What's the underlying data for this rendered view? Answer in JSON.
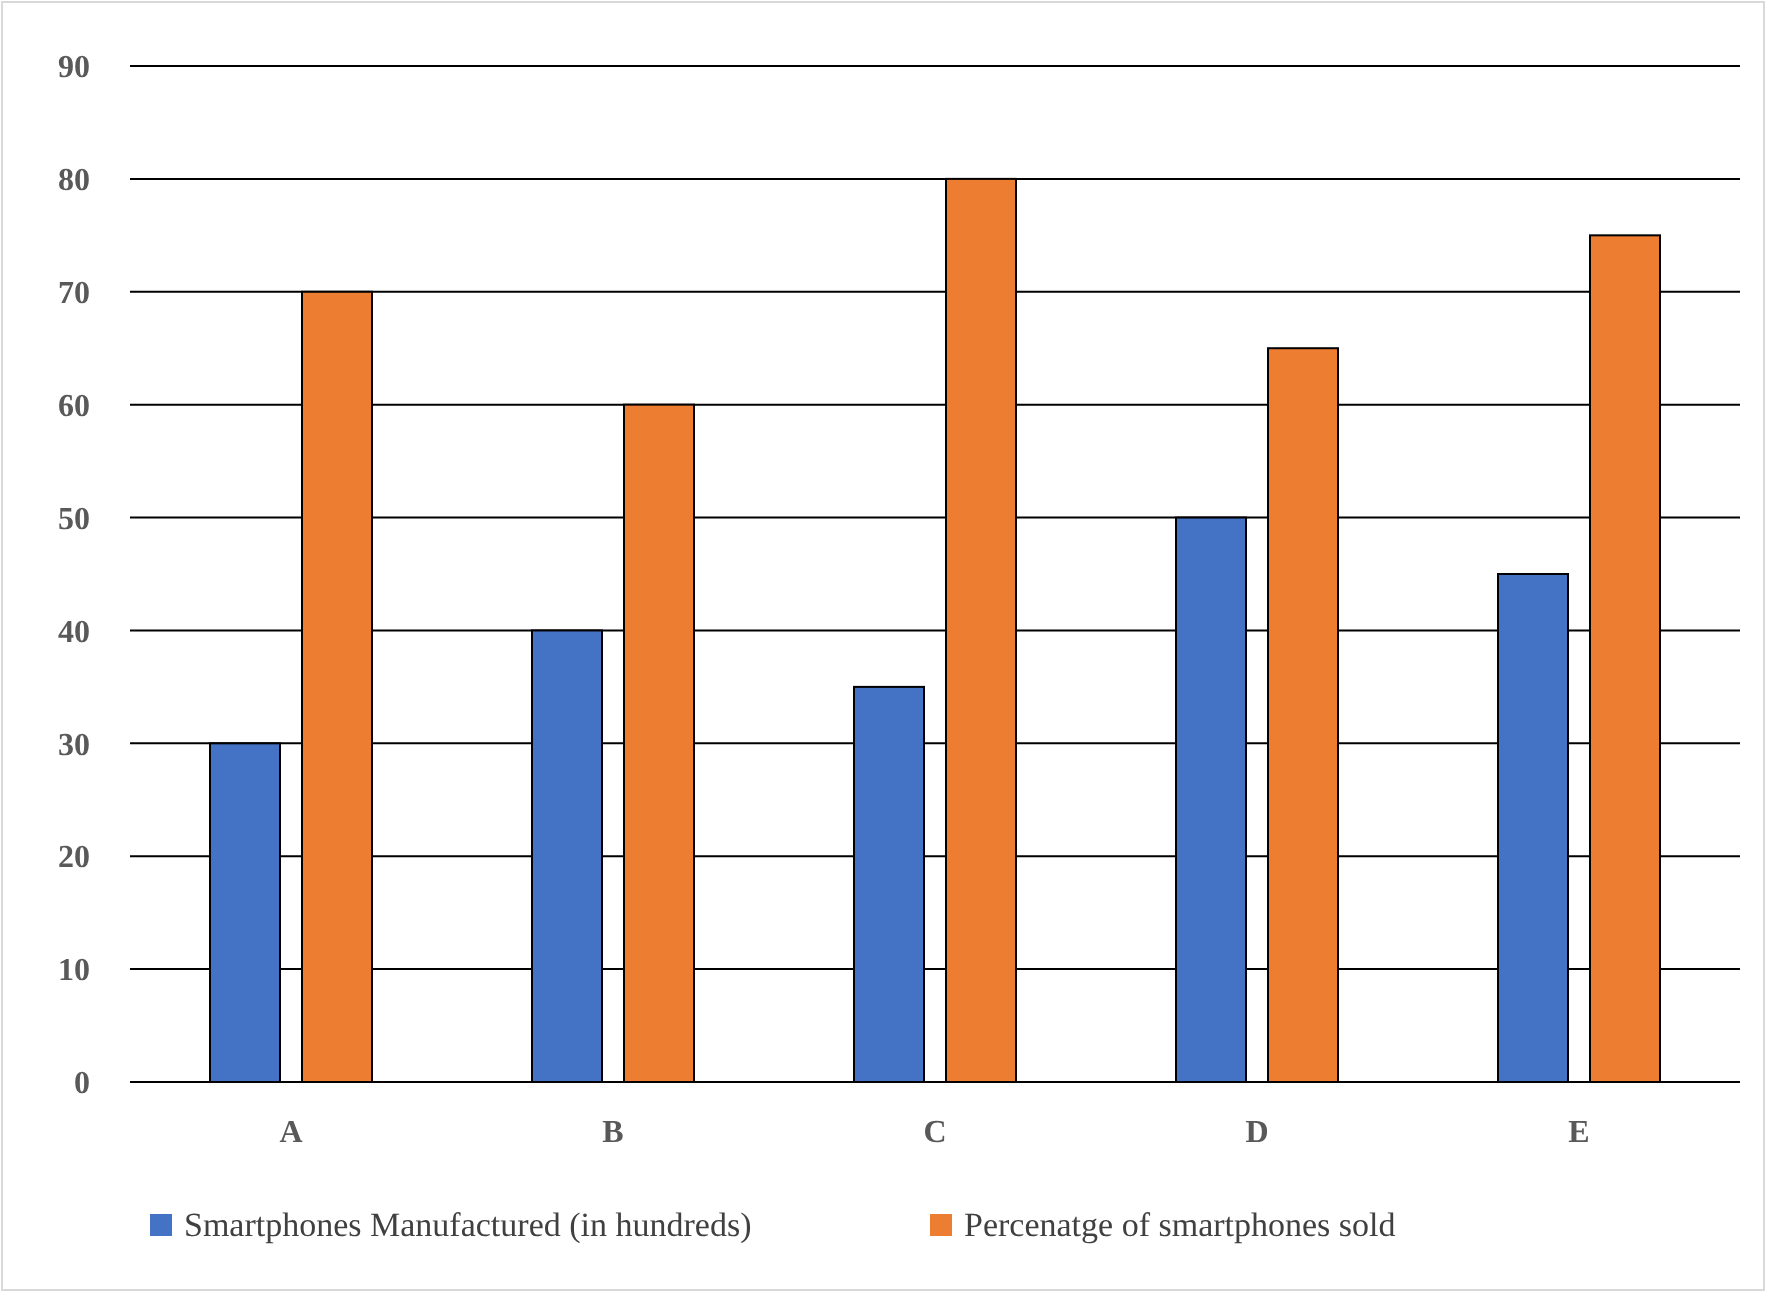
{
  "chart_data": {
    "type": "bar",
    "categories": [
      "A",
      "B",
      "C",
      "D",
      "E"
    ],
    "series": [
      {
        "name": "Smartphones Manufactured (in hundreds)",
        "color": "#4472c4",
        "values": [
          30,
          40,
          35,
          50,
          45
        ]
      },
      {
        "name": "Percenatge of smartphones sold",
        "color": "#ed7d31",
        "values": [
          70,
          60,
          80,
          65,
          75
        ]
      }
    ],
    "ylim": [
      0,
      90
    ],
    "yticks": [
      0,
      10,
      20,
      30,
      40,
      50,
      60,
      70,
      80,
      90
    ],
    "grid": "y",
    "legend": "bottom"
  }
}
